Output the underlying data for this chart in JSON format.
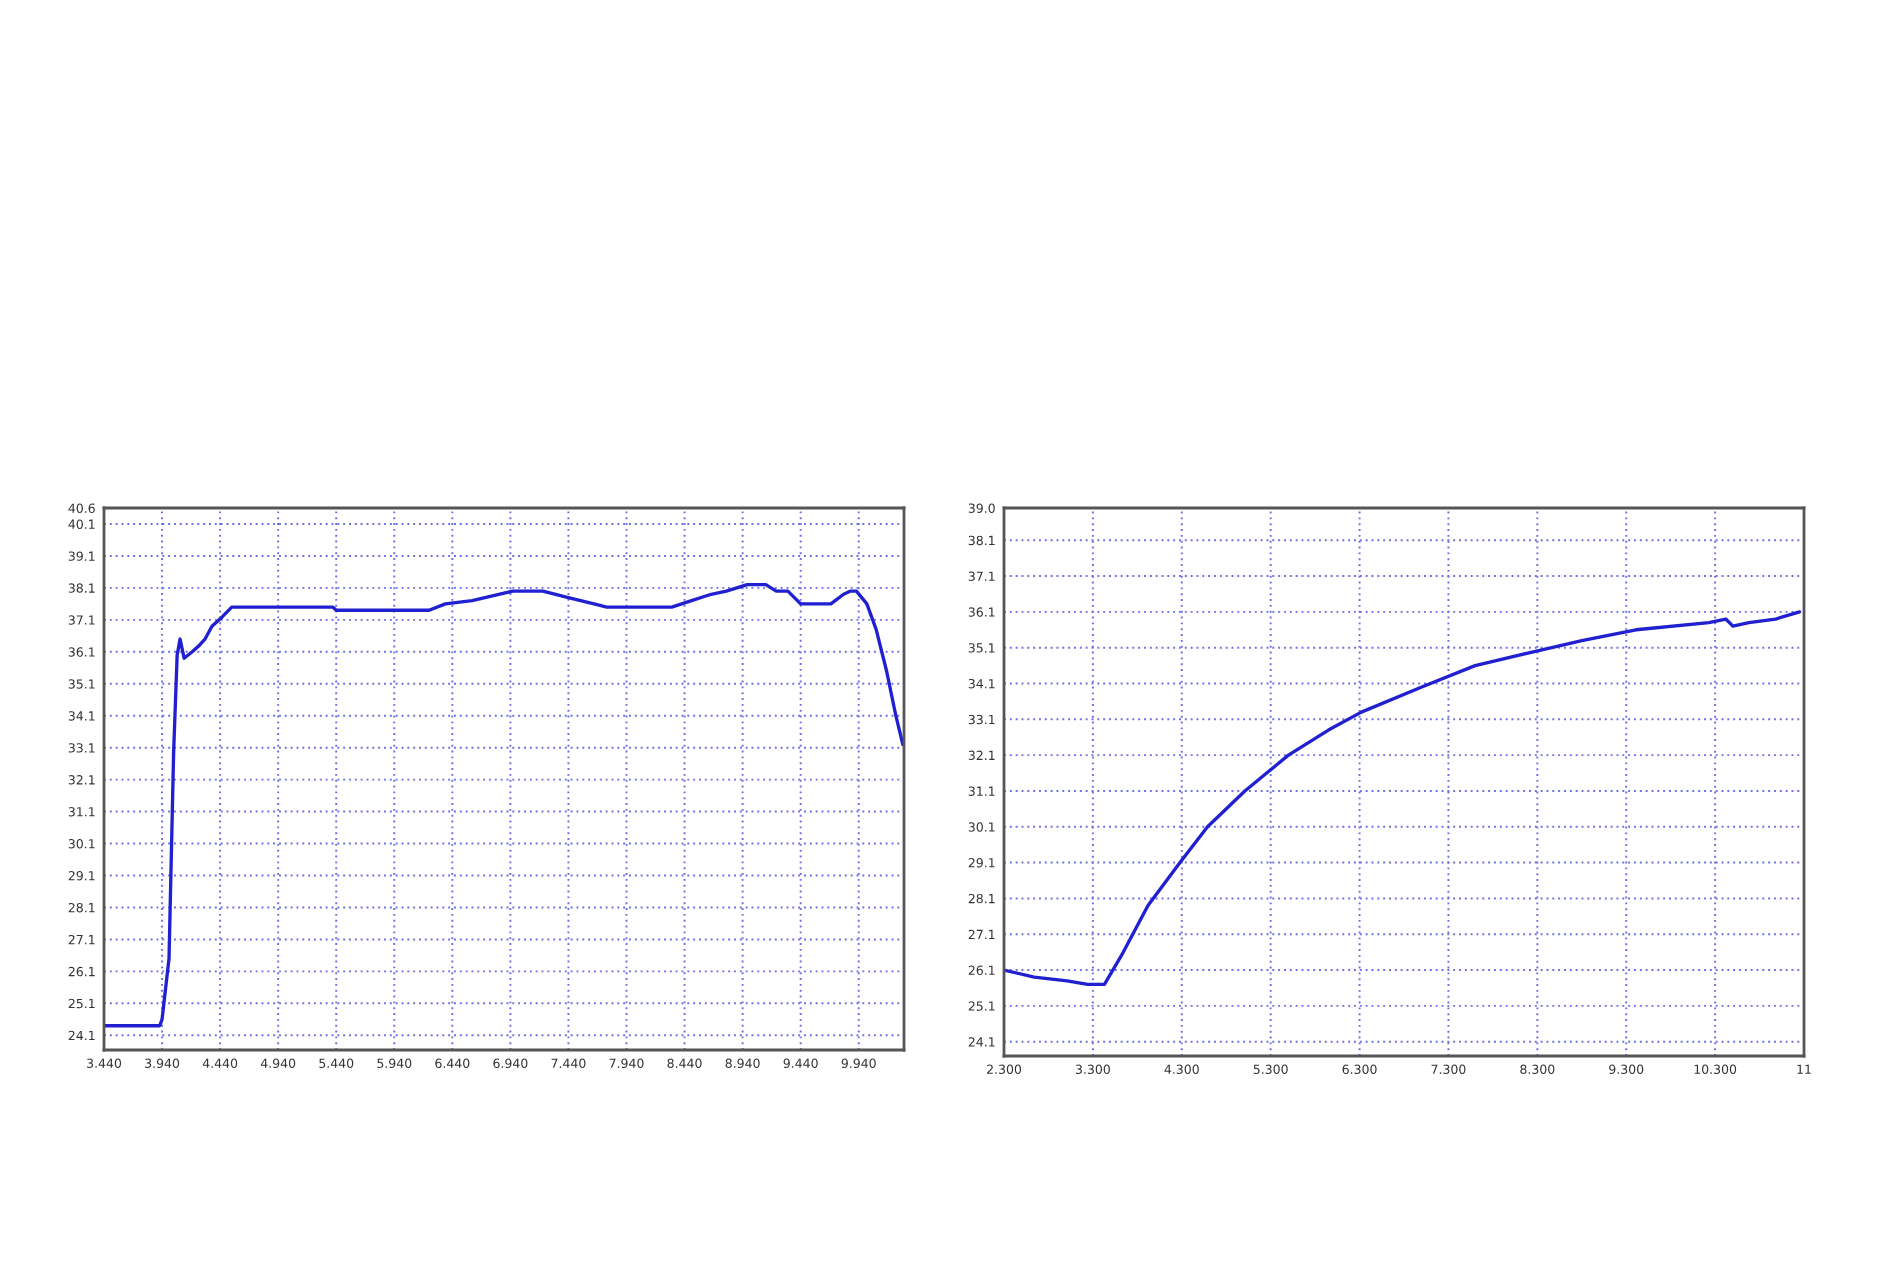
{
  "chart_data": [
    {
      "type": "line",
      "grid": true,
      "line_style": "solid",
      "marker": "none",
      "xlim": [
        3.44,
        10.33
      ],
      "ylim": [
        23.64,
        40.6
      ],
      "xticks": [
        {
          "value": 3.44,
          "label": "3.440"
        },
        {
          "value": 3.94,
          "label": "3.940"
        },
        {
          "value": 4.44,
          "label": "4.440"
        },
        {
          "value": 4.94,
          "label": "4.940"
        },
        {
          "value": 5.44,
          "label": "5.440"
        },
        {
          "value": 5.94,
          "label": "5.940"
        },
        {
          "value": 6.44,
          "label": "6.440"
        },
        {
          "value": 6.94,
          "label": "6.940"
        },
        {
          "value": 7.44,
          "label": "7.440"
        },
        {
          "value": 7.94,
          "label": "7.940"
        },
        {
          "value": 8.44,
          "label": "8.440"
        },
        {
          "value": 8.94,
          "label": "8.940"
        },
        {
          "value": 9.44,
          "label": "9.440"
        },
        {
          "value": 9.94,
          "label": "9.940"
        }
      ],
      "yticks": [
        24.1,
        25.1,
        26.1,
        27.1,
        28.1,
        29.1,
        30.1,
        31.1,
        32.1,
        33.1,
        34.1,
        35.1,
        36.1,
        37.1,
        38.1,
        39.1,
        40.1,
        40.6
      ],
      "series": [
        {
          "color": "#2020d0",
          "x": [
            3.44,
            3.92,
            3.94,
            4.0,
            4.04,
            4.07,
            4.095,
            4.13,
            4.2,
            4.26,
            4.31,
            4.37,
            4.46,
            4.54,
            5.41,
            5.44,
            6.24,
            6.38,
            6.61,
            6.84,
            6.96,
            7.22,
            7.43,
            7.66,
            7.77,
            8.33,
            8.5,
            8.67,
            8.8,
            8.98,
            9.14,
            9.23,
            9.33,
            9.44,
            9.7,
            9.81,
            9.87,
            9.92,
            10.01,
            10.09,
            10.18,
            10.26,
            10.32
          ],
          "values": [
            24.4,
            24.4,
            24.6,
            26.5,
            33.0,
            36.0,
            36.5,
            35.9,
            36.1,
            36.3,
            36.5,
            36.9,
            37.2,
            37.5,
            37.5,
            37.4,
            37.4,
            37.6,
            37.7,
            37.9,
            38.0,
            38.0,
            37.8,
            37.6,
            37.5,
            37.5,
            37.7,
            37.9,
            38.0,
            38.2,
            38.2,
            38.0,
            38.0,
            37.6,
            37.6,
            37.9,
            38.0,
            38.0,
            37.6,
            36.8,
            35.5,
            34.1,
            33.2
          ]
        }
      ]
    },
    {
      "type": "line",
      "grid": true,
      "line_style": "solid",
      "marker": "none",
      "xlim": [
        2.3,
        11.3
      ],
      "ylim": [
        23.7,
        39.0
      ],
      "xticks": [
        {
          "value": 2.3,
          "label": "2.300"
        },
        {
          "value": 3.3,
          "label": "3.300"
        },
        {
          "value": 4.3,
          "label": "4.300"
        },
        {
          "value": 5.3,
          "label": "5.300"
        },
        {
          "value": 6.3,
          "label": "6.300"
        },
        {
          "value": 7.3,
          "label": "7.300"
        },
        {
          "value": 8.3,
          "label": "8.300"
        },
        {
          "value": 9.3,
          "label": "9.300"
        },
        {
          "value": 10.3,
          "label": "10.300"
        },
        {
          "value": 11.3,
          "label": "11"
        }
      ],
      "yticks": [
        24.1,
        25.1,
        26.1,
        27.1,
        28.1,
        29.1,
        30.1,
        31.1,
        32.1,
        33.1,
        34.1,
        35.1,
        36.1,
        37.1,
        38.1,
        {
          "value": 39.0,
          "label": "39.0"
        }
      ],
      "series": [
        {
          "color": "#2020d0",
          "x": [
            2.3,
            2.64,
            3.01,
            3.24,
            3.43,
            3.62,
            3.92,
            4.28,
            4.59,
            5.01,
            5.5,
            5.95,
            6.32,
            7.0,
            7.6,
            8.28,
            8.8,
            9.41,
            10.23,
            10.42,
            10.5,
            10.68,
            10.98,
            11.25
          ],
          "values": [
            26.1,
            25.9,
            25.8,
            25.7,
            25.7,
            26.5,
            27.9,
            29.1,
            30.1,
            31.1,
            32.1,
            32.8,
            33.3,
            34.0,
            34.6,
            35.0,
            35.3,
            35.6,
            35.8,
            35.9,
            35.7,
            35.8,
            35.9,
            36.1
          ]
        }
      ]
    }
  ]
}
